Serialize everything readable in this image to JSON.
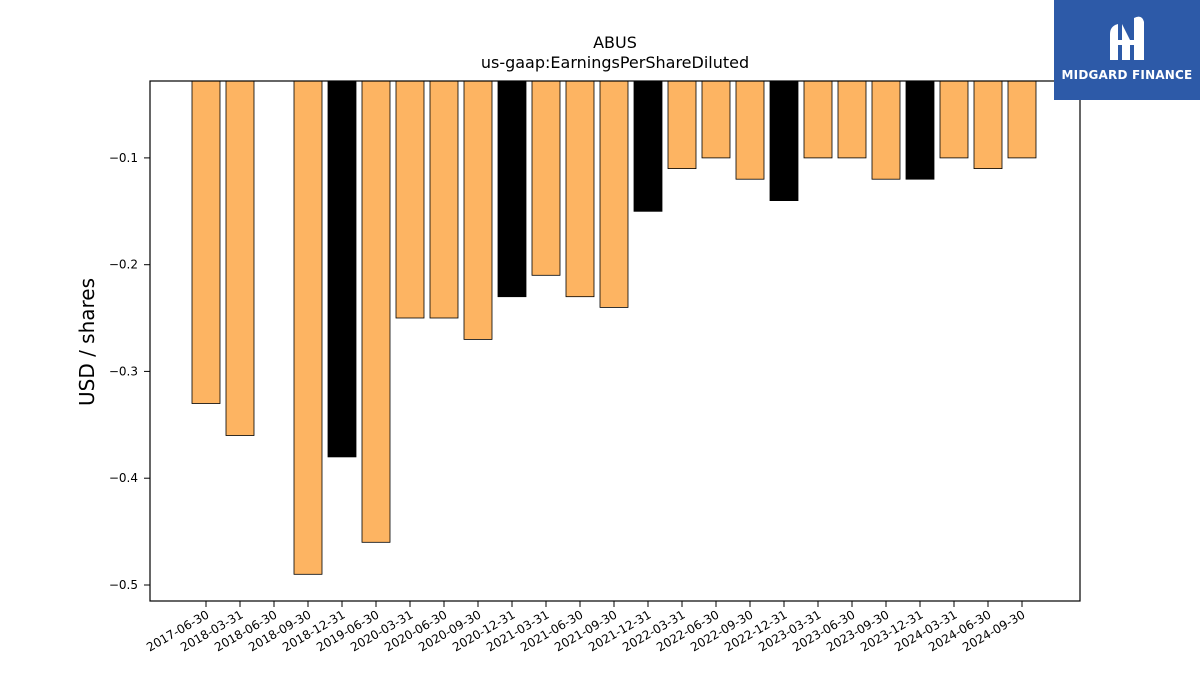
{
  "logo": {
    "text": "MIDGARD FINANCE",
    "icon": "midgard-logo-icon"
  },
  "chart_data": {
    "type": "bar",
    "title": "ABUS",
    "subtitle": "us-gaap:EarningsPerShareDiluted",
    "ylabel": "USD / shares",
    "xlabel": "",
    "ylim": [
      -0.515,
      -0.028
    ],
    "yticks": [
      -0.1,
      -0.2,
      -0.3,
      -0.4,
      -0.5
    ],
    "ytick_labels": [
      "−0.1",
      "−0.2",
      "−0.3",
      "−0.4",
      "−0.5"
    ],
    "grid": false,
    "colors": {
      "quarter": "#fdb462",
      "annual": "#000000",
      "edge": "#000000"
    },
    "categories": [
      "2017-06-30",
      "2018-03-31",
      "2018-06-30",
      "2018-09-30",
      "2018-12-31",
      "2019-06-30",
      "2020-03-31",
      "2020-06-30",
      "2020-09-30",
      "2020-12-31",
      "2021-03-31",
      "2021-06-30",
      "2021-09-30",
      "2021-12-31",
      "2022-03-31",
      "2022-06-30",
      "2022-09-30",
      "2022-12-31",
      "2023-03-31",
      "2023-06-30",
      "2023-09-30",
      "2023-12-31",
      "2024-03-31",
      "2024-06-30",
      "2024-09-30"
    ],
    "bars": [
      {
        "label": "2017-06-30",
        "value": -0.33,
        "kind": "quarter"
      },
      {
        "label": "2018-03-31",
        "value": -0.36,
        "kind": "quarter"
      },
      {
        "label": "2018-09-30",
        "value": -0.49,
        "kind": "quarter"
      },
      {
        "label": "2018-12-31",
        "value": -0.38,
        "kind": "annual"
      },
      {
        "label": "2019-06-30",
        "value": -0.46,
        "kind": "quarter"
      },
      {
        "label": "2020-03-31",
        "value": -0.25,
        "kind": "quarter"
      },
      {
        "label": "2020-06-30",
        "value": -0.25,
        "kind": "quarter"
      },
      {
        "label": "2020-09-30",
        "value": -0.27,
        "kind": "quarter"
      },
      {
        "label": "2020-12-31",
        "value": -0.23,
        "kind": "annual"
      },
      {
        "label": "2021-03-31",
        "value": -0.21,
        "kind": "quarter"
      },
      {
        "label": "2021-06-30",
        "value": -0.23,
        "kind": "quarter"
      },
      {
        "label": "2021-09-30",
        "value": -0.24,
        "kind": "quarter"
      },
      {
        "label": "2021-12-31",
        "value": -0.15,
        "kind": "annual"
      },
      {
        "label": "2022-03-31",
        "value": -0.11,
        "kind": "quarter"
      },
      {
        "label": "2022-06-30",
        "value": -0.1,
        "kind": "quarter"
      },
      {
        "label": "2022-09-30",
        "value": -0.12,
        "kind": "quarter"
      },
      {
        "label": "2022-12-31",
        "value": -0.14,
        "kind": "annual"
      },
      {
        "label": "2023-03-31",
        "value": -0.1,
        "kind": "quarter"
      },
      {
        "label": "2023-06-30",
        "value": -0.1,
        "kind": "quarter"
      },
      {
        "label": "2023-09-30",
        "value": -0.12,
        "kind": "quarter"
      },
      {
        "label": "2023-12-31",
        "value": -0.12,
        "kind": "annual"
      },
      {
        "label": "2024-03-31",
        "value": -0.1,
        "kind": "quarter"
      },
      {
        "label": "2024-06-30",
        "value": -0.11,
        "kind": "quarter"
      },
      {
        "label": "2024-09-30",
        "value": -0.1,
        "kind": "quarter"
      }
    ]
  }
}
